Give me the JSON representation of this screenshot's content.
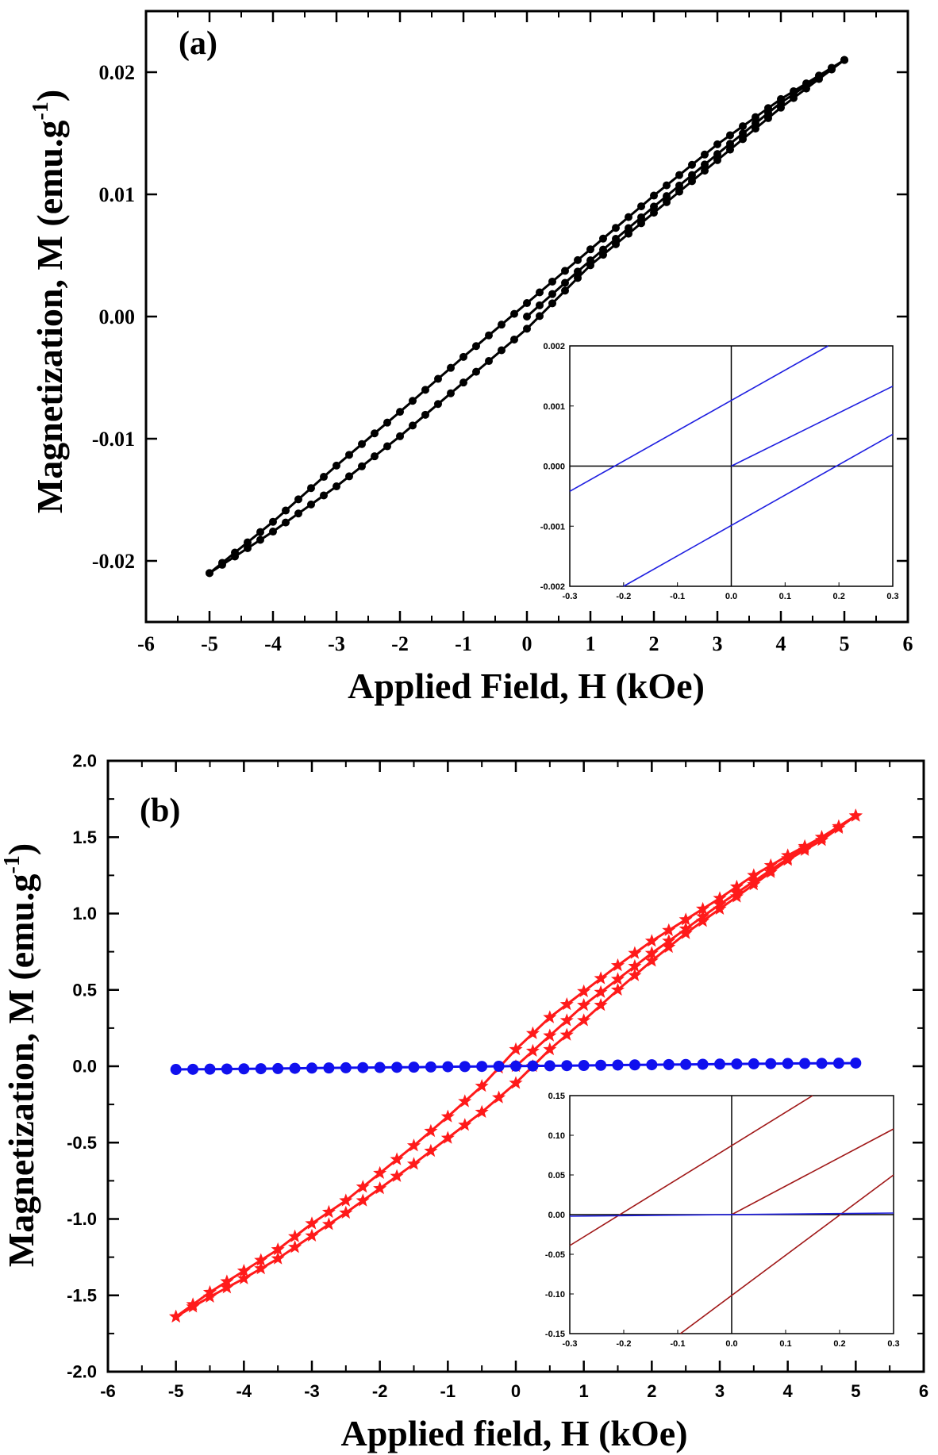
{
  "chart_data": [
    {
      "type": "line",
      "panel_label": "(a)",
      "xlabel": "Applied Field, H (kOe)",
      "ylabel": "Magnetization, M (emu.g",
      "ylabel_sup": "-1",
      "ylabel_close": ")",
      "xlim": [
        -6,
        6
      ],
      "ylim": [
        -0.025,
        0.025
      ],
      "xticks": [
        "-6",
        "-5",
        "-4",
        "-3",
        "-2",
        "-1",
        "0",
        "1",
        "2",
        "3",
        "4",
        "5",
        "6"
      ],
      "yticks": [
        "-0.02",
        "-0.01",
        "0.00",
        "0.01",
        "0.02"
      ],
      "colors": {
        "series": "#000000"
      },
      "series": [
        {
          "values": [
            [
              -5,
              -0.021
            ],
            [
              -4,
              -0.0168
            ],
            [
              -3,
              -0.0122
            ],
            [
              -2,
              -0.0078
            ],
            [
              -1,
              -0.0033
            ],
            [
              0,
              0.0011
            ],
            [
              1,
              0.0055
            ],
            [
              2,
              0.0099
            ],
            [
              3,
              0.0141
            ],
            [
              4,
              0.0178
            ],
            [
              5,
              0.021
            ]
          ]
        },
        {
          "values": [
            [
              5,
              0.021
            ],
            [
              4,
              0.0171
            ],
            [
              3,
              0.0128
            ],
            [
              2,
              0.0085
            ],
            [
              1,
              0.0042
            ],
            [
              0,
              -0.001
            ],
            [
              -1,
              -0.0054
            ],
            [
              -2,
              -0.0098
            ],
            [
              -3,
              -0.0139
            ],
            [
              -4,
              -0.0176
            ],
            [
              -5,
              -0.021
            ]
          ]
        },
        {
          "values": [
            [
              0,
              0
            ],
            [
              1,
              0.0046
            ],
            [
              2,
              0.009
            ],
            [
              3,
              0.0133
            ],
            [
              4,
              0.0175
            ],
            [
              5,
              0.021
            ]
          ]
        }
      ],
      "inset": {
        "xlim": [
          -0.3,
          0.3
        ],
        "ylim": [
          -0.002,
          0.002
        ],
        "xticks": [
          "-0.3",
          "-0.2",
          "-0.1",
          "0.0",
          "0.1",
          "0.2",
          "0.3"
        ],
        "yticks": [
          "0.002",
          "0.001",
          "0.000",
          "-0.001",
          "-0.002"
        ],
        "colors": {
          "series": "#1f1fe0"
        },
        "series": [
          {
            "values": [
              [
                -0.3,
                -0.00042
              ],
              [
                0.18,
                0.002
              ]
            ]
          },
          {
            "values": [
              [
                -0.2,
                -0.002
              ],
              [
                0.3,
                0.00053
              ]
            ]
          },
          {
            "values": [
              [
                0,
                0
              ],
              [
                0.3,
                0.00133
              ]
            ]
          }
        ]
      }
    },
    {
      "type": "line",
      "panel_label": "(b)",
      "xlabel": "Applied field, H (kOe)",
      "ylabel": "Magnetization, M (emu.g",
      "ylabel_sup": "-1",
      "ylabel_close": ")",
      "xlim": [
        -6,
        6
      ],
      "ylim": [
        -2.0,
        2.0
      ],
      "xticks": [
        "-6",
        "-5",
        "-4",
        "-3",
        "-2",
        "-1",
        "0",
        "1",
        "2",
        "3",
        "4",
        "5",
        "6"
      ],
      "yticks": [
        "2.0",
        "1.5",
        "1.0",
        "0.5",
        "0.0",
        "-0.5",
        "-1.0",
        "-1.5",
        "-2.0"
      ],
      "colors": {
        "red": "#ff1a1a",
        "blue": "#1010ee"
      },
      "series": [
        {
          "color": "red",
          "values": [
            [
              -5,
              -1.64
            ],
            [
              -4.5,
              -1.48
            ],
            [
              -4,
              -1.34
            ],
            [
              -3.5,
              -1.2
            ],
            [
              -3,
              -1.03
            ],
            [
              -2.5,
              -0.88
            ],
            [
              -2,
              -0.7
            ],
            [
              -1.5,
              -0.52
            ],
            [
              -1,
              -0.33
            ],
            [
              -0.5,
              -0.13
            ],
            [
              0,
              0.11
            ],
            [
              0.5,
              0.32
            ],
            [
              1,
              0.49
            ],
            [
              1.5,
              0.66
            ],
            [
              2,
              0.82
            ],
            [
              2.5,
              0.96
            ],
            [
              3,
              1.1
            ],
            [
              3.5,
              1.25
            ],
            [
              4,
              1.38
            ],
            [
              4.5,
              1.5
            ],
            [
              5,
              1.64
            ]
          ]
        },
        {
          "color": "red",
          "values": [
            [
              5,
              1.64
            ],
            [
              4.5,
              1.48
            ],
            [
              4,
              1.35
            ],
            [
              3.5,
              1.19
            ],
            [
              3,
              1.03
            ],
            [
              2.5,
              0.87
            ],
            [
              2,
              0.69
            ],
            [
              1.5,
              0.5
            ],
            [
              1,
              0.3
            ],
            [
              0.5,
              0.11
            ],
            [
              0,
              -0.11
            ],
            [
              -0.5,
              -0.3
            ],
            [
              -1,
              -0.47
            ],
            [
              -1.5,
              -0.64
            ],
            [
              -2,
              -0.8
            ],
            [
              -2.5,
              -0.96
            ],
            [
              -3,
              -1.11
            ],
            [
              -3.5,
              -1.26
            ],
            [
              -4,
              -1.39
            ],
            [
              -4.5,
              -1.51
            ],
            [
              -5,
              -1.64
            ]
          ]
        },
        {
          "color": "red",
          "values": [
            [
              0,
              0
            ],
            [
              0.5,
              0.2
            ],
            [
              1,
              0.4
            ],
            [
              1.5,
              0.57
            ],
            [
              2,
              0.74
            ],
            [
              2.5,
              0.9
            ],
            [
              3,
              1.06
            ],
            [
              3.5,
              1.21
            ],
            [
              4,
              1.36
            ],
            [
              4.5,
              1.5
            ],
            [
              5,
              1.64
            ]
          ]
        },
        {
          "color": "blue",
          "markers": "circle",
          "values": [
            [
              -5,
              -0.021
            ],
            [
              -4.5,
              -0.019
            ],
            [
              -4,
              -0.017
            ],
            [
              -3.5,
              -0.015
            ],
            [
              -3,
              -0.012
            ],
            [
              -2.5,
              -0.01
            ],
            [
              -2,
              -0.008
            ],
            [
              -1.5,
              -0.006
            ],
            [
              -1,
              -0.003
            ],
            [
              -0.5,
              -0.001
            ],
            [
              0,
              0.001
            ],
            [
              0.5,
              0.003
            ],
            [
              1,
              0.005
            ],
            [
              1.5,
              0.008
            ],
            [
              2,
              0.01
            ],
            [
              2.5,
              0.012
            ],
            [
              3,
              0.014
            ],
            [
              3.5,
              0.016
            ],
            [
              4,
              0.018
            ],
            [
              4.5,
              0.019
            ],
            [
              5,
              0.021
            ]
          ]
        }
      ],
      "inset": {
        "xlim": [
          -0.3,
          0.3
        ],
        "ylim": [
          -0.15,
          0.15
        ],
        "xticks": [
          "-0.3",
          "-0.2",
          "-0.1",
          "0.0",
          "0.1",
          "0.2",
          "0.3"
        ],
        "yticks": [
          "0.15",
          "0.10",
          "0.05",
          "0.00",
          "-0.05",
          "-0.10",
          "-0.15"
        ],
        "colors": {
          "red": "#a01818",
          "blue": "#1f1fe0"
        },
        "series": [
          {
            "color": "red",
            "values": [
              [
                -0.3,
                -0.039
              ],
              [
                0.15,
                0.15
              ]
            ]
          },
          {
            "color": "red",
            "values": [
              [
                -0.095,
                -0.15
              ],
              [
                0.3,
                0.05
              ]
            ]
          },
          {
            "color": "red",
            "values": [
              [
                0,
                0
              ],
              [
                0.3,
                0.108
              ]
            ]
          },
          {
            "color": "blue",
            "values": [
              [
                -0.3,
                -0.002
              ],
              [
                0.3,
                0.002
              ]
            ]
          }
        ]
      }
    }
  ]
}
